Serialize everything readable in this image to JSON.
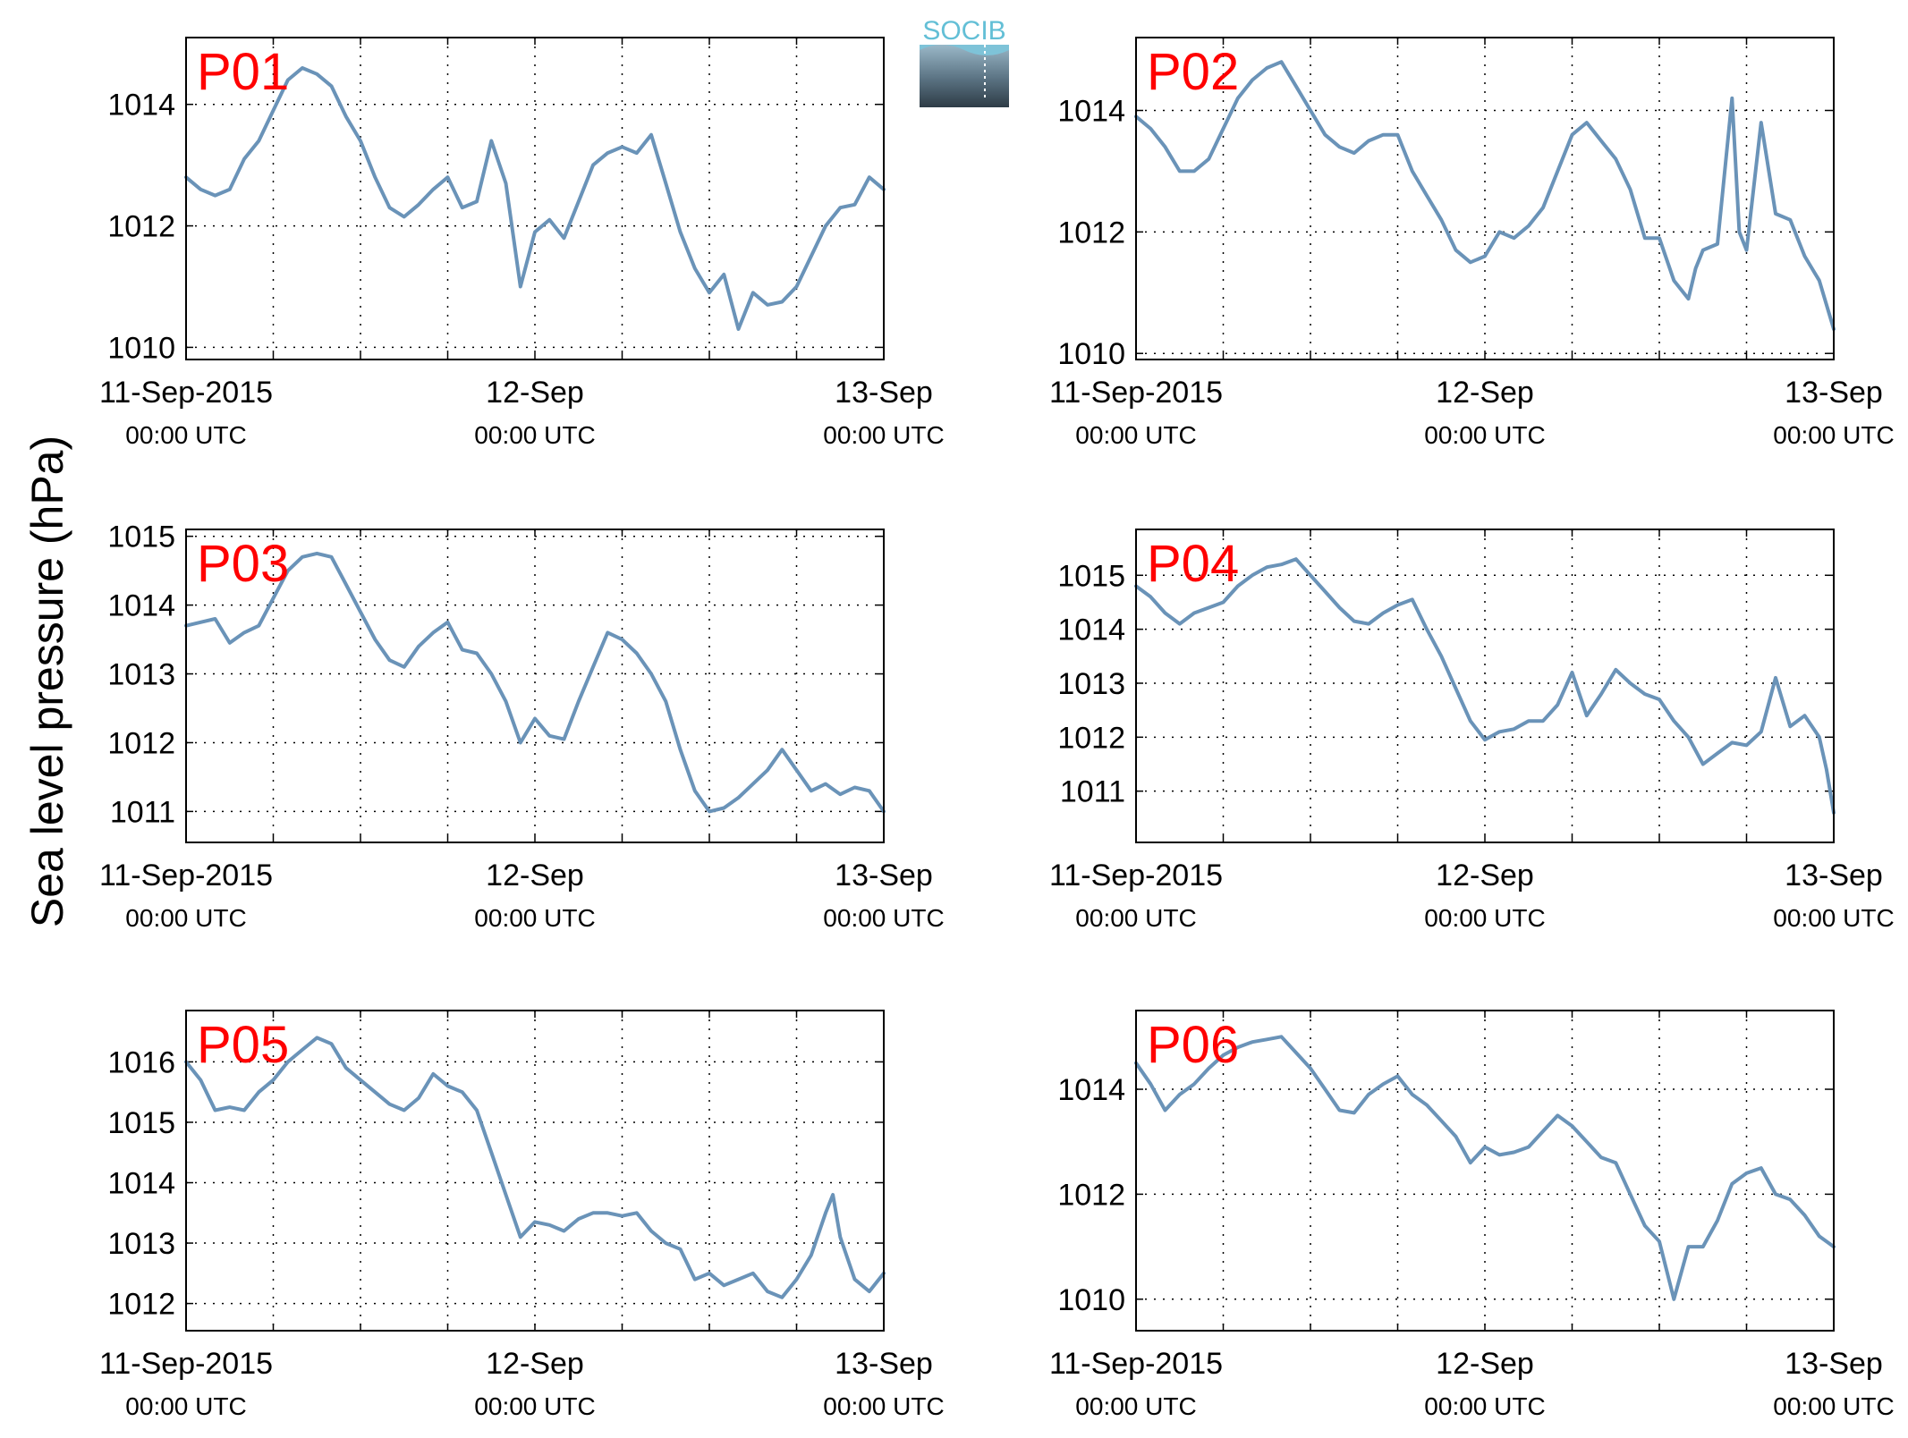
{
  "figure": {
    "ylabel": "Sea level pressure (hPa)",
    "logo_text": "SOCIB",
    "line_color": "#6a93b8",
    "label_color": "#ff0000"
  },
  "chart_data": [
    {
      "type": "line",
      "title": "P01",
      "x_ticks": [
        {
          "line1": "11-Sep-2015",
          "line2": "00:00 UTC"
        },
        {
          "line1": "12-Sep",
          "line2": "00:00 UTC"
        },
        {
          "line1": "13-Sep",
          "line2": "00:00 UTC"
        }
      ],
      "xlim": [
        0,
        48
      ],
      "ylim": [
        1009.8,
        1015.1
      ],
      "yticks": [
        1010,
        1012,
        1014
      ],
      "grid": true,
      "series": [
        {
          "x": [
            0,
            1,
            2,
            3,
            4,
            5,
            6,
            7,
            8,
            9,
            10,
            11,
            12,
            13,
            14,
            15,
            16,
            17,
            18,
            19,
            20,
            21,
            22,
            23,
            24,
            25,
            26,
            27,
            28,
            29,
            30,
            31,
            32,
            33,
            34,
            35,
            36,
            37,
            38,
            39,
            40,
            41,
            42,
            43,
            44,
            45,
            46,
            47,
            48
          ],
          "y": [
            1012.8,
            1012.6,
            1012.5,
            1012.6,
            1013.1,
            1013.4,
            1013.9,
            1014.4,
            1014.6,
            1014.5,
            1014.3,
            1013.8,
            1013.4,
            1012.8,
            1012.3,
            1012.15,
            1012.35,
            1012.6,
            1012.8,
            1012.3,
            1012.4,
            1013.4,
            1012.7,
            1011.0,
            1011.9,
            1012.1,
            1011.8,
            1012.4,
            1013.0,
            1013.2,
            1013.3,
            1013.2,
            1013.5,
            1012.7,
            1011.9,
            1011.3,
            1010.9,
            1011.2,
            1010.3,
            1010.9,
            1010.7,
            1010.75,
            1011.0,
            1011.5,
            1012.0,
            1012.3,
            1012.35,
            1012.8,
            1012.6
          ]
        }
      ]
    },
    {
      "type": "line",
      "title": "P02",
      "x_ticks": [
        {
          "line1": "11-Sep-2015",
          "line2": "00:00 UTC"
        },
        {
          "line1": "12-Sep",
          "line2": "00:00 UTC"
        },
        {
          "line1": "13-Sep",
          "line2": "00:00 UTC"
        }
      ],
      "xlim": [
        0,
        48
      ],
      "ylim": [
        1009.9,
        1015.2
      ],
      "yticks": [
        1010,
        1012,
        1014
      ],
      "grid": true,
      "series": [
        {
          "x": [
            0,
            1,
            2,
            3,
            4,
            5,
            6,
            7,
            8,
            9,
            10,
            11,
            12,
            13,
            14,
            15,
            16,
            17,
            18,
            19,
            20,
            21,
            22,
            23,
            24,
            25,
            26,
            27,
            28,
            29,
            30,
            31,
            32,
            33,
            34,
            35,
            36,
            37,
            38,
            38.5,
            39,
            40,
            41,
            41.5,
            42,
            43,
            44,
            45,
            46,
            47,
            48
          ],
          "y": [
            1013.9,
            1013.7,
            1013.4,
            1013.0,
            1013.0,
            1013.2,
            1013.7,
            1014.2,
            1014.5,
            1014.7,
            1014.8,
            1014.4,
            1014.0,
            1013.6,
            1013.4,
            1013.3,
            1013.5,
            1013.6,
            1013.6,
            1013.0,
            1012.6,
            1012.2,
            1011.7,
            1011.5,
            1011.6,
            1012.0,
            1011.9,
            1012.1,
            1012.4,
            1013.0,
            1013.6,
            1013.8,
            1013.5,
            1013.2,
            1012.7,
            1011.9,
            1011.9,
            1011.2,
            1010.9,
            1011.4,
            1011.7,
            1011.8,
            1014.2,
            1012.0,
            1011.7,
            1013.8,
            1012.3,
            1012.2,
            1011.6,
            1011.2,
            1010.4
          ]
        }
      ]
    },
    {
      "type": "line",
      "title": "P03",
      "x_ticks": [
        {
          "line1": "11-Sep-2015",
          "line2": "00:00 UTC"
        },
        {
          "line1": "12-Sep",
          "line2": "00:00 UTC"
        },
        {
          "line1": "13-Sep",
          "line2": "00:00 UTC"
        }
      ],
      "xlim": [
        0,
        48
      ],
      "ylim": [
        1010.55,
        1015.1
      ],
      "yticks": [
        1011,
        1012,
        1013,
        1014,
        1015
      ],
      "grid": true,
      "series": [
        {
          "x": [
            0,
            1,
            2,
            3,
            4,
            5,
            6,
            7,
            8,
            9,
            10,
            11,
            12,
            13,
            14,
            15,
            16,
            17,
            18,
            19,
            20,
            21,
            22,
            23,
            24,
            25,
            26,
            27,
            28,
            29,
            30,
            31,
            32,
            33,
            34,
            35,
            36,
            37,
            38,
            39,
            40,
            41,
            42,
            43,
            44,
            45,
            46,
            47,
            48
          ],
          "y": [
            1013.7,
            1013.75,
            1013.8,
            1013.45,
            1013.6,
            1013.7,
            1014.1,
            1014.5,
            1014.7,
            1014.75,
            1014.7,
            1014.3,
            1013.9,
            1013.5,
            1013.2,
            1013.1,
            1013.4,
            1013.6,
            1013.75,
            1013.35,
            1013.3,
            1013.0,
            1012.6,
            1012.0,
            1012.35,
            1012.1,
            1012.05,
            1012.6,
            1013.1,
            1013.6,
            1013.5,
            1013.3,
            1013.0,
            1012.6,
            1011.9,
            1011.3,
            1011.0,
            1011.05,
            1011.2,
            1011.4,
            1011.6,
            1011.9,
            1011.6,
            1011.3,
            1011.4,
            1011.25,
            1011.35,
            1011.3,
            1011.0
          ]
        }
      ]
    },
    {
      "type": "line",
      "title": "P04",
      "x_ticks": [
        {
          "line1": "11-Sep-2015",
          "line2": "00:00 UTC"
        },
        {
          "line1": "12-Sep",
          "line2": "00:00 UTC"
        },
        {
          "line1": "13-Sep",
          "line2": "00:00 UTC"
        }
      ],
      "xlim": [
        0,
        48
      ],
      "ylim": [
        1010.05,
        1015.85
      ],
      "yticks": [
        1011,
        1012,
        1013,
        1014,
        1015
      ],
      "grid": true,
      "series": [
        {
          "x": [
            0,
            1,
            2,
            3,
            4,
            5,
            6,
            7,
            8,
            9,
            10,
            11,
            12,
            13,
            14,
            15,
            16,
            17,
            18,
            19,
            20,
            21,
            22,
            23,
            24,
            25,
            26,
            27,
            28,
            29,
            30,
            31,
            32,
            33,
            34,
            35,
            36,
            37,
            38,
            39,
            40,
            41,
            42,
            43,
            44,
            45,
            46,
            47,
            47.5,
            48
          ],
          "y": [
            1014.8,
            1014.6,
            1014.3,
            1014.1,
            1014.3,
            1014.4,
            1014.5,
            1014.8,
            1015.0,
            1015.15,
            1015.2,
            1015.3,
            1015.0,
            1014.7,
            1014.4,
            1014.15,
            1014.1,
            1014.3,
            1014.45,
            1014.55,
            1014.0,
            1013.5,
            1012.9,
            1012.3,
            1011.95,
            1012.1,
            1012.15,
            1012.3,
            1012.3,
            1012.6,
            1013.2,
            1012.4,
            1012.8,
            1013.25,
            1013.0,
            1012.8,
            1012.7,
            1012.3,
            1012.0,
            1011.5,
            1011.7,
            1011.9,
            1011.85,
            1012.1,
            1013.1,
            1012.2,
            1012.4,
            1012.0,
            1011.4,
            1010.6
          ]
        }
      ]
    },
    {
      "type": "line",
      "title": "P05",
      "x_ticks": [
        {
          "line1": "11-Sep-2015",
          "line2": "00:00 UTC"
        },
        {
          "line1": "12-Sep",
          "line2": "00:00 UTC"
        },
        {
          "line1": "13-Sep",
          "line2": "00:00 UTC"
        }
      ],
      "xlim": [
        0,
        48
      ],
      "ylim": [
        1011.55,
        1016.85
      ],
      "yticks": [
        1012,
        1013,
        1014,
        1015,
        1016
      ],
      "grid": true,
      "series": [
        {
          "x": [
            0,
            1,
            2,
            3,
            4,
            5,
            6,
            7,
            8,
            9,
            10,
            11,
            12,
            13,
            14,
            15,
            16,
            17,
            18,
            19,
            20,
            21,
            22,
            23,
            24,
            25,
            26,
            27,
            28,
            29,
            30,
            31,
            32,
            33,
            34,
            35,
            36,
            37,
            38,
            39,
            40,
            41,
            42,
            43,
            44,
            44.5,
            45,
            46,
            47,
            48
          ],
          "y": [
            1016.0,
            1015.7,
            1015.2,
            1015.25,
            1015.2,
            1015.5,
            1015.7,
            1016.0,
            1016.2,
            1016.4,
            1016.3,
            1015.9,
            1015.7,
            1015.5,
            1015.3,
            1015.2,
            1015.4,
            1015.8,
            1015.6,
            1015.5,
            1015.2,
            1014.5,
            1013.8,
            1013.1,
            1013.35,
            1013.3,
            1013.2,
            1013.4,
            1013.5,
            1013.5,
            1013.45,
            1013.5,
            1013.2,
            1013.0,
            1012.9,
            1012.4,
            1012.5,
            1012.3,
            1012.4,
            1012.5,
            1012.2,
            1012.1,
            1012.4,
            1012.8,
            1013.5,
            1013.8,
            1013.1,
            1012.4,
            1012.2,
            1012.5
          ]
        }
      ]
    },
    {
      "type": "line",
      "title": "P06",
      "x_ticks": [
        {
          "line1": "11-Sep-2015",
          "line2": "00:00 UTC"
        },
        {
          "line1": "12-Sep",
          "line2": "00:00 UTC"
        },
        {
          "line1": "13-Sep",
          "line2": "00:00 UTC"
        }
      ],
      "xlim": [
        0,
        48
      ],
      "ylim": [
        1009.4,
        1015.5
      ],
      "yticks": [
        1010,
        1012,
        1014
      ],
      "grid": true,
      "series": [
        {
          "x": [
            0,
            1,
            2,
            3,
            4,
            5,
            6,
            7,
            8,
            9,
            10,
            11,
            12,
            13,
            14,
            15,
            16,
            17,
            18,
            19,
            20,
            21,
            22,
            23,
            24,
            25,
            26,
            27,
            28,
            29,
            30,
            31,
            32,
            33,
            34,
            35,
            36,
            37,
            38,
            39,
            40,
            41,
            42,
            43,
            44,
            45,
            46,
            47,
            48
          ],
          "y": [
            1014.5,
            1014.1,
            1013.6,
            1013.9,
            1014.1,
            1014.4,
            1014.65,
            1014.8,
            1014.9,
            1014.95,
            1015.0,
            1014.7,
            1014.4,
            1014.0,
            1013.6,
            1013.55,
            1013.9,
            1014.1,
            1014.25,
            1013.9,
            1013.7,
            1013.4,
            1013.1,
            1012.6,
            1012.9,
            1012.75,
            1012.8,
            1012.9,
            1013.2,
            1013.5,
            1013.3,
            1013.0,
            1012.7,
            1012.6,
            1012.0,
            1011.4,
            1011.1,
            1010.0,
            1011.0,
            1011.0,
            1011.5,
            1012.2,
            1012.4,
            1012.5,
            1012.0,
            1011.9,
            1011.6,
            1011.2,
            1011.0
          ]
        }
      ]
    }
  ]
}
